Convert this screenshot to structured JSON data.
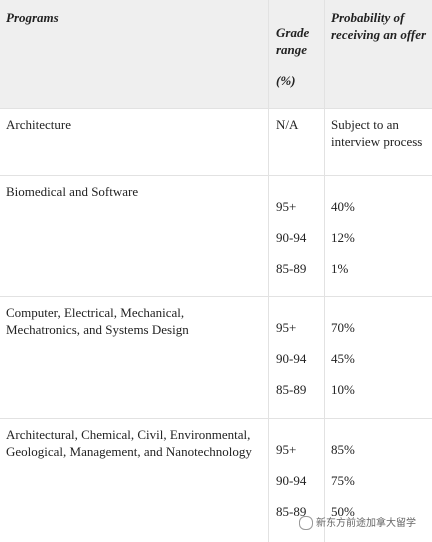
{
  "header": {
    "programs": "Programs",
    "grade_range": "Grade range",
    "grade_unit": "(%)",
    "probability": "Probability of receiving an offer"
  },
  "rows": [
    {
      "program": "Architecture",
      "grades": [
        "N/A"
      ],
      "probabilities": [
        "Subject to an interview process"
      ]
    },
    {
      "program": "Biomedical and Software",
      "grades": [
        "95+",
        "90-94",
        "85-89"
      ],
      "probabilities": [
        "40%",
        "12%",
        "1%"
      ]
    },
    {
      "program": "Computer, Electrical, Mechanical, Mechatronics, and Systems Design",
      "grades": [
        "95+",
        "90-94",
        "85-89"
      ],
      "probabilities": [
        "70%",
        "45%",
        "10%"
      ]
    },
    {
      "program": "Architectural, Chemical, Civil, Environmental, Geological, Management, and Nanotechnology",
      "grades": [
        "95+",
        "90-94",
        "85-89"
      ],
      "probabilities": [
        "85%",
        "75%",
        "50%"
      ]
    }
  ],
  "watermark": "新东方前途加拿大留学"
}
